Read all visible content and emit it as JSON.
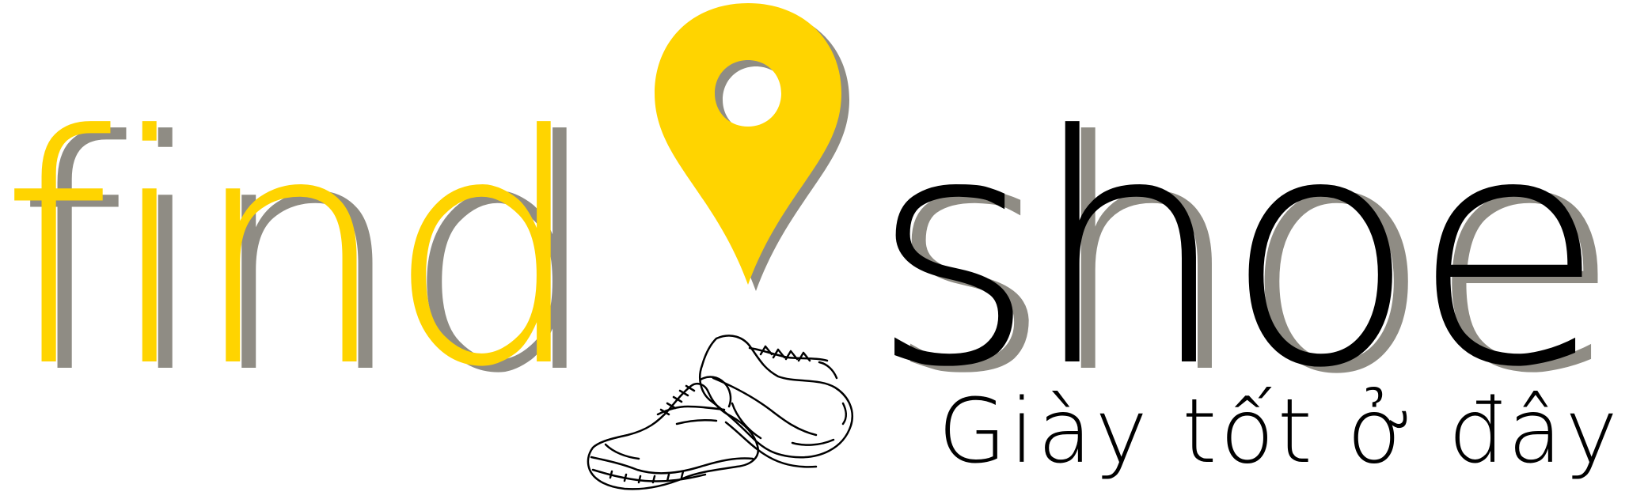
{
  "brand": {
    "word_left": "find",
    "word_right": "shoe",
    "tagline": "Giày tốt ở đây"
  },
  "colors": {
    "yellow": "#FFD400",
    "black": "#000000",
    "shadow": "#8F8C84",
    "pin_shadow": "#8F8C84"
  },
  "icons": {
    "pin": "map-pin-icon",
    "shoes": "sneakers-illustration"
  }
}
